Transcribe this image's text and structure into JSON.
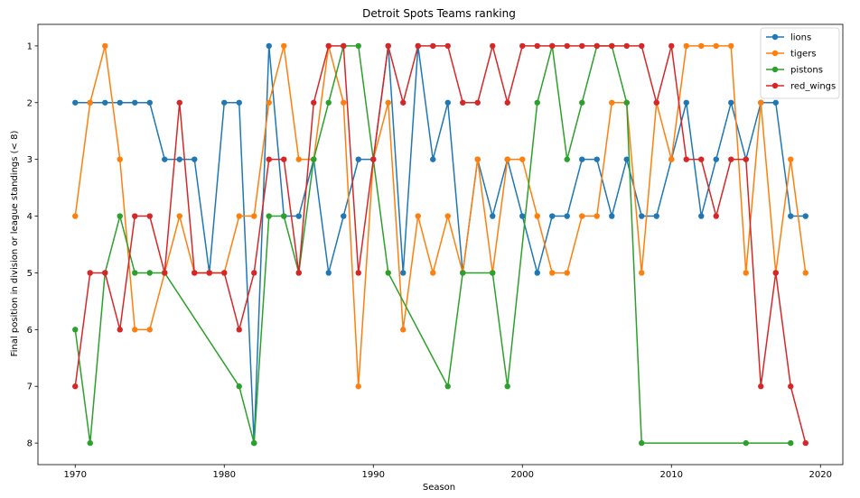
{
  "chart_data": {
    "type": "line",
    "title": "Detroit Spots Teams ranking",
    "xlabel": "Season",
    "ylabel": "Final position in division or league standings (< 8)",
    "xlim": [
      1967.5,
      2021.5
    ],
    "ylim": [
      8.38,
      0.62
    ],
    "y_inverted": true,
    "xticks": [
      1970,
      1980,
      1990,
      2000,
      2010,
      2020
    ],
    "yticks": [
      1,
      2,
      3,
      4,
      5,
      6,
      7,
      8
    ],
    "grid": false,
    "legend_position": "top-right",
    "series": [
      {
        "name": "lions",
        "color": "#1f77b4",
        "points": [
          [
            1970,
            2
          ],
          [
            1971,
            2
          ],
          [
            1972,
            2
          ],
          [
            1973,
            2
          ],
          [
            1974,
            2
          ],
          [
            1975,
            2
          ],
          [
            1976,
            3
          ],
          [
            1977,
            3
          ],
          [
            1978,
            3
          ],
          [
            1979,
            5
          ],
          [
            1980,
            2
          ],
          [
            1981,
            2
          ],
          [
            1982,
            8
          ],
          [
            1983,
            1
          ],
          [
            1984,
            4
          ],
          [
            1985,
            4
          ],
          [
            1986,
            3
          ],
          [
            1987,
            5
          ],
          [
            1988,
            4
          ],
          [
            1989,
            3
          ],
          [
            1990,
            3
          ],
          [
            1991,
            1
          ],
          [
            1992,
            5
          ],
          [
            1993,
            1
          ],
          [
            1994,
            3
          ],
          [
            1995,
            2
          ],
          [
            1996,
            5
          ],
          [
            1997,
            3
          ],
          [
            1998,
            4
          ],
          [
            1999,
            3
          ],
          [
            2000,
            4
          ],
          [
            2001,
            5
          ],
          [
            2002,
            4
          ],
          [
            2003,
            4
          ],
          [
            2004,
            3
          ],
          [
            2005,
            3
          ],
          [
            2006,
            4
          ],
          [
            2007,
            3
          ],
          [
            2008,
            4
          ],
          [
            2009,
            4
          ],
          [
            2010,
            3
          ],
          [
            2011,
            2
          ],
          [
            2012,
            4
          ],
          [
            2013,
            3
          ],
          [
            2014,
            2
          ],
          [
            2015,
            3
          ],
          [
            2016,
            2
          ],
          [
            2017,
            2
          ],
          [
            2018,
            4
          ],
          [
            2019,
            4
          ]
        ]
      },
      {
        "name": "tigers",
        "color": "#ff7f0e",
        "points": [
          [
            1970,
            4
          ],
          [
            1971,
            2
          ],
          [
            1972,
            1
          ],
          [
            1973,
            3
          ],
          [
            1974,
            6
          ],
          [
            1975,
            6
          ],
          [
            1976,
            5
          ],
          [
            1977,
            4
          ],
          [
            1978,
            5
          ],
          [
            1979,
            5
          ],
          [
            1980,
            5
          ],
          [
            1981,
            4
          ],
          [
            1982,
            4
          ],
          [
            1983,
            2
          ],
          [
            1984,
            1
          ],
          [
            1985,
            3
          ],
          [
            1986,
            3
          ],
          [
            1987,
            1
          ],
          [
            1988,
            2
          ],
          [
            1989,
            7
          ],
          [
            1990,
            3
          ],
          [
            1991,
            2
          ],
          [
            1992,
            6
          ],
          [
            1993,
            4
          ],
          [
            1994,
            5
          ],
          [
            1995,
            4
          ],
          [
            1996,
            5
          ],
          [
            1997,
            3
          ],
          [
            1998,
            5
          ],
          [
            1999,
            3
          ],
          [
            2000,
            3
          ],
          [
            2001,
            4
          ],
          [
            2002,
            5
          ],
          [
            2003,
            5
          ],
          [
            2004,
            4
          ],
          [
            2005,
            4
          ],
          [
            2006,
            2
          ],
          [
            2007,
            2
          ],
          [
            2008,
            5
          ],
          [
            2009,
            2
          ],
          [
            2010,
            3
          ],
          [
            2011,
            1
          ],
          [
            2012,
            1
          ],
          [
            2013,
            1
          ],
          [
            2014,
            1
          ],
          [
            2015,
            5
          ],
          [
            2016,
            2
          ],
          [
            2017,
            5
          ],
          [
            2018,
            3
          ],
          [
            2019,
            5
          ]
        ]
      },
      {
        "name": "pistons",
        "color": "#2ca02c",
        "points": [
          [
            1970,
            6
          ],
          [
            1971,
            8
          ],
          [
            1972,
            5
          ],
          [
            1973,
            4
          ],
          [
            1974,
            5
          ],
          [
            1975,
            5
          ],
          [
            1976,
            5
          ],
          [
            1981,
            7
          ],
          [
            1982,
            8
          ],
          [
            1983,
            4
          ],
          [
            1984,
            4
          ],
          [
            1985,
            5
          ],
          [
            1986,
            3
          ],
          [
            1987,
            2
          ],
          [
            1988,
            1
          ],
          [
            1989,
            1
          ],
          [
            1991,
            5
          ],
          [
            1995,
            7
          ],
          [
            1996,
            5
          ],
          [
            1998,
            5
          ],
          [
            1999,
            7
          ],
          [
            2001,
            2
          ],
          [
            2002,
            1
          ],
          [
            2003,
            3
          ],
          [
            2004,
            2
          ],
          [
            2005,
            1
          ],
          [
            2006,
            1
          ],
          [
            2007,
            2
          ],
          [
            2008,
            8
          ],
          [
            2015,
            8
          ],
          [
            2018,
            8
          ]
        ]
      },
      {
        "name": "red_wings",
        "color": "#d62728",
        "points": [
          [
            1970,
            7
          ],
          [
            1971,
            5
          ],
          [
            1972,
            5
          ],
          [
            1973,
            6
          ],
          [
            1974,
            4
          ],
          [
            1975,
            4
          ],
          [
            1976,
            5
          ],
          [
            1977,
            2
          ],
          [
            1978,
            5
          ],
          [
            1979,
            5
          ],
          [
            1980,
            5
          ],
          [
            1981,
            6
          ],
          [
            1982,
            5
          ],
          [
            1983,
            3
          ],
          [
            1984,
            3
          ],
          [
            1985,
            5
          ],
          [
            1986,
            2
          ],
          [
            1987,
            1
          ],
          [
            1988,
            1
          ],
          [
            1989,
            5
          ],
          [
            1990,
            3
          ],
          [
            1991,
            1
          ],
          [
            1992,
            2
          ],
          [
            1993,
            1
          ],
          [
            1994,
            1
          ],
          [
            1995,
            1
          ],
          [
            1996,
            2
          ],
          [
            1997,
            2
          ],
          [
            1998,
            1
          ],
          [
            1999,
            2
          ],
          [
            2000,
            1
          ],
          [
            2001,
            1
          ],
          [
            2002,
            1
          ],
          [
            2003,
            1
          ],
          [
            2004,
            1
          ],
          [
            2005,
            1
          ],
          [
            2006,
            1
          ],
          [
            2007,
            1
          ],
          [
            2008,
            1
          ],
          [
            2009,
            2
          ],
          [
            2010,
            1
          ],
          [
            2011,
            3
          ],
          [
            2012,
            3
          ],
          [
            2013,
            4
          ],
          [
            2014,
            3
          ],
          [
            2015,
            3
          ],
          [
            2016,
            7
          ],
          [
            2017,
            5
          ],
          [
            2018,
            7
          ],
          [
            2019,
            8
          ]
        ]
      }
    ]
  }
}
